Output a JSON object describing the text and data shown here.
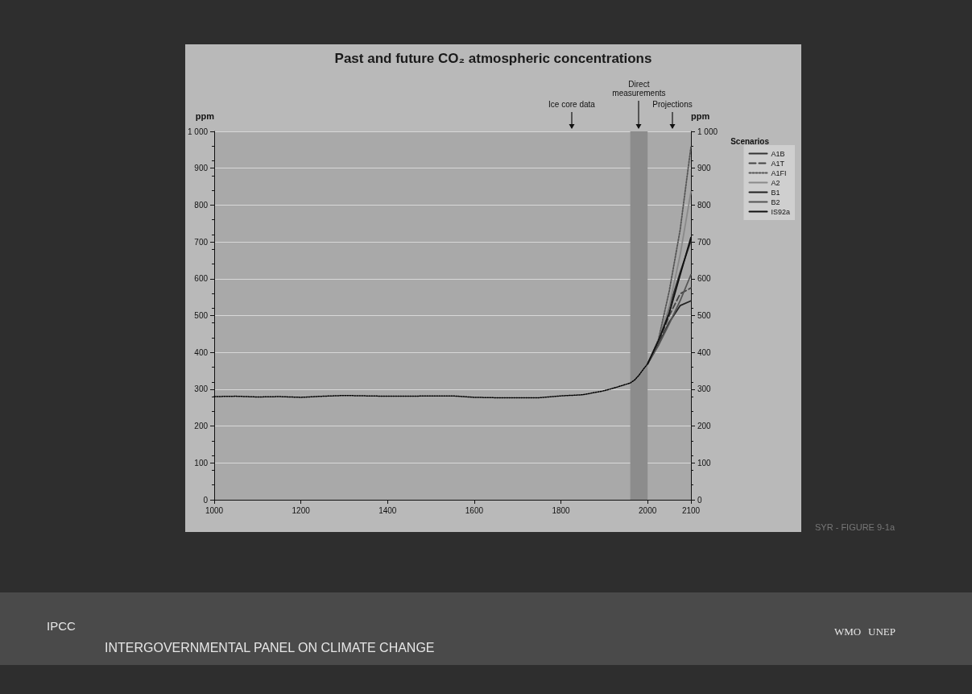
{
  "chart_data": {
    "type": "line",
    "title": "Past and future CO₂ atmospheric concentrations",
    "ylabel": "ppm",
    "y2label": "ppm",
    "legend_title": "Scenarios",
    "xlim": [
      1000,
      2100
    ],
    "xticks": [
      1000,
      1200,
      1400,
      1600,
      1800,
      2000,
      2100
    ],
    "ylim": [
      0,
      1000
    ],
    "yticks": [
      0,
      100,
      200,
      300,
      400,
      500,
      600,
      700,
      800,
      900,
      {
        "value": 1000,
        "label": "1 000"
      }
    ],
    "y2lim": [
      0,
      1000
    ],
    "y2ticks": [
      0,
      100,
      200,
      300,
      400,
      500,
      600,
      700,
      800,
      900,
      {
        "value": 1000,
        "label": "1 000"
      }
    ],
    "grid": "y",
    "legend": "right",
    "marker": "none",
    "bands": [
      {
        "axis": "x",
        "from": 1960,
        "to": 2000,
        "label": "Direct measurements",
        "color": "#8c8c8c"
      }
    ],
    "annotations": [
      "Ice core data",
      "Projections",
      "SYR - FIGURE 9-1a",
      "IPCC",
      "INTERGOVERNMENTAL PANEL ON CLIMATE CHANGE",
      "WMO",
      "UNEP"
    ],
    "series": [
      {
        "color": "#000000",
        "line_style": "dotted",
        "x": [
          1000,
          1050,
          1100,
          1150,
          1200,
          1250,
          1300,
          1350,
          1400,
          1450,
          1500,
          1550,
          1600,
          1650,
          1700,
          1750,
          1800,
          1850,
          1900,
          1930,
          1960,
          1970,
          1980,
          1990,
          2000
        ],
        "values": [
          280,
          281,
          279,
          280,
          278,
          281,
          283,
          282,
          281,
          281,
          282,
          282,
          278,
          277,
          277,
          277,
          282,
          285,
          296,
          306,
          317,
          325,
          338,
          354,
          369
        ]
      },
      {
        "name": "A1B",
        "color": "#333333",
        "line_style": "solid",
        "x": [
          2000,
          2025,
          2050,
          2075,
          2100
        ],
        "values": [
          369,
          430,
          522,
          617,
          703
        ]
      },
      {
        "name": "A1T",
        "color": "#444444",
        "line_style": "dashed",
        "x": [
          2000,
          2025,
          2050,
          2075,
          2100
        ],
        "values": [
          369,
          425,
          500,
          559,
          575
        ]
      },
      {
        "name": "A1FI",
        "color": "#555555",
        "line_style": "dotted",
        "x": [
          2000,
          2025,
          2050,
          2075,
          2100
        ],
        "values": [
          369,
          435,
          567,
          732,
          958
        ]
      },
      {
        "name": "A2",
        "color": "#8a8a8a",
        "line_style": "solid",
        "x": [
          2000,
          2025,
          2050,
          2075,
          2100
        ],
        "values": [
          369,
          429,
          527,
          664,
          836
        ]
      },
      {
        "name": "B1",
        "color": "#222222",
        "line_style": "solid",
        "x": [
          2000,
          2025,
          2050,
          2075,
          2100
        ],
        "values": [
          369,
          421,
          482,
          527,
          540
        ]
      },
      {
        "name": "B2",
        "color": "#555555",
        "line_style": "solid",
        "x": [
          2000,
          2025,
          2050,
          2075,
          2100
        ],
        "values": [
          369,
          419,
          478,
          540,
          611
        ]
      },
      {
        "name": "IS92a",
        "color": "#111111",
        "line_style": "solid",
        "x": [
          2000,
          2025,
          2050,
          2075,
          2100
        ],
        "values": [
          369,
          432,
          507,
          610,
          712
        ]
      }
    ]
  }
}
